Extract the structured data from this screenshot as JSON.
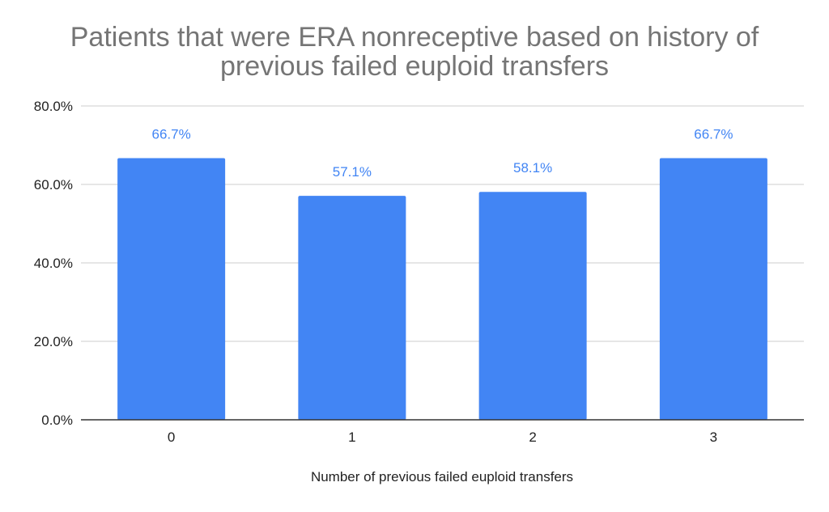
{
  "chart_data": {
    "type": "bar",
    "title": "Patients that were ERA nonreceptive based on history of\nprevious failed euploid transfers",
    "xlabel": "Number of previous failed euploid transfers",
    "ylabel": "",
    "categories": [
      "0",
      "1",
      "2",
      "3"
    ],
    "values": [
      66.7,
      57.1,
      58.1,
      66.7
    ],
    "data_labels": [
      "66.7%",
      "57.1%",
      "58.1%",
      "66.7%"
    ],
    "yticks": [
      0,
      20,
      40,
      60,
      80
    ],
    "ytick_labels": [
      "0.0%",
      "20.0%",
      "40.0%",
      "60.0%",
      "80.0%"
    ],
    "ylim": [
      0,
      80
    ],
    "grid": true,
    "legend": "none",
    "bar_color": "#4285f4",
    "label_color": "#4285f4",
    "grid_color": "#cccccc",
    "title_color": "#757575"
  }
}
